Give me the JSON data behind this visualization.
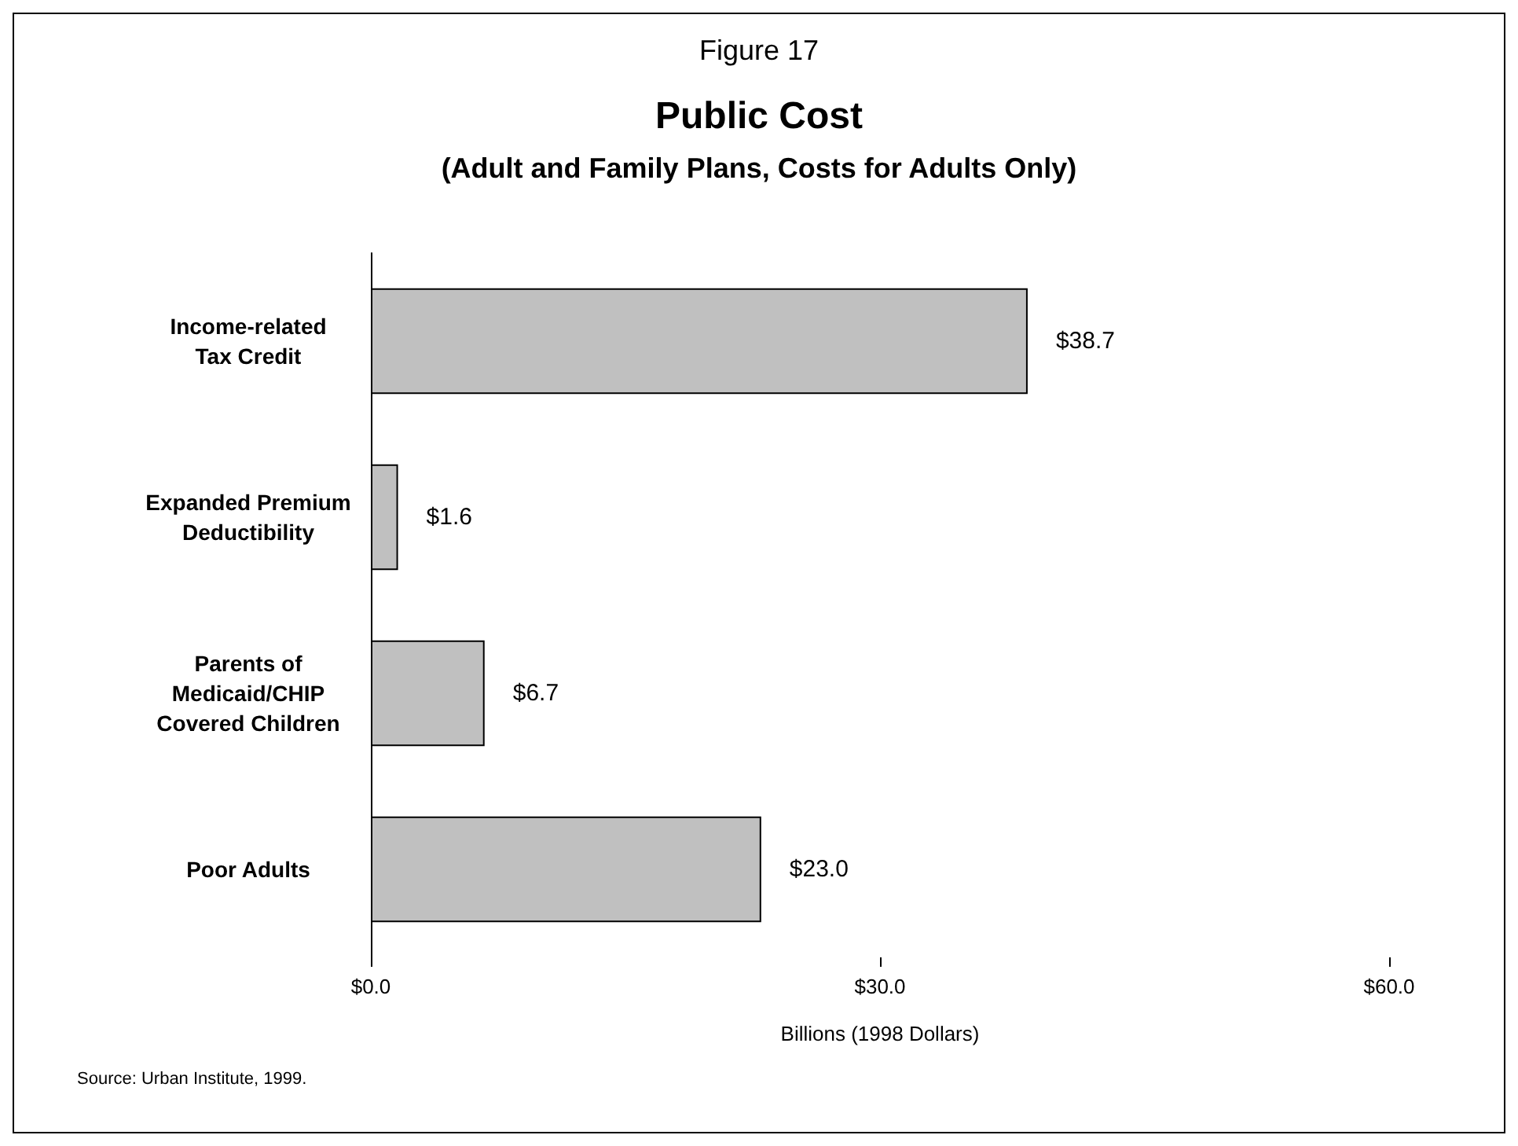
{
  "chart_data": {
    "type": "bar",
    "orientation": "horizontal",
    "title": "Public Cost",
    "subtitle": "(Adult and Family Plans, Costs for Adults Only)",
    "xlabel": "Billions (1998 Dollars)",
    "categories": [
      "Income-related\nTax Credit",
      "Expanded Premium\nDeductibility",
      "Parents of\nMedicaid/CHIP\nCovered Children",
      "Poor Adults"
    ],
    "values": [
      38.7,
      1.6,
      6.7,
      23.0
    ],
    "color": "#c0c0c0",
    "value_labels": [
      "$38.7",
      "$1.6",
      "$6.7",
      "$23.0"
    ],
    "xlim": [
      0,
      60
    ],
    "xticks": [
      {
        "value": 0,
        "label": "$0.0"
      },
      {
        "value": 30,
        "label": "$30.0"
      },
      {
        "value": 60,
        "label": "$60.0"
      }
    ],
    "annotations": [
      "Figure 17",
      "Source: Urban Institute, 1999."
    ]
  }
}
